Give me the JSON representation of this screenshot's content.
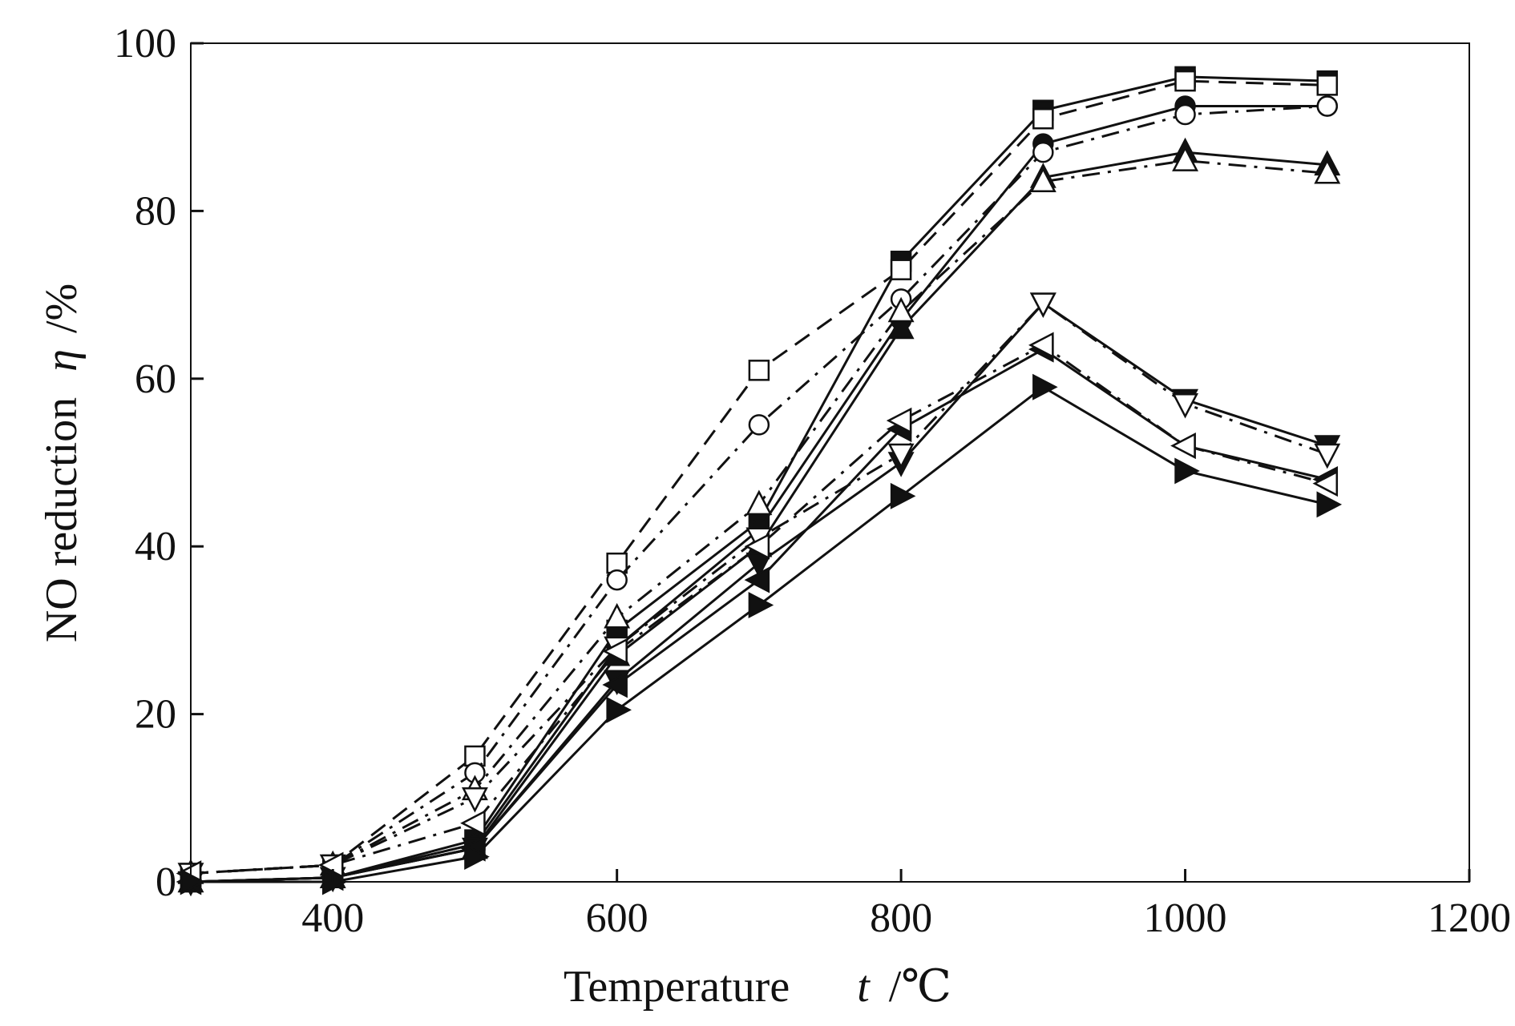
{
  "chart_data": {
    "type": "line",
    "title": "",
    "xlabel": "Temperature",
    "xlabel_symbol": "t",
    "xlabel_unit": "/℃",
    "ylabel": "NO reduction",
    "ylabel_symbol": "η",
    "ylabel_unit": "/%",
    "xlim": [
      300,
      1200
    ],
    "ylim": [
      0,
      100
    ],
    "xticks": [
      400,
      600,
      800,
      1000,
      1200
    ],
    "yticks": [
      0,
      20,
      40,
      60,
      80,
      100
    ],
    "grid": false,
    "x": [
      300,
      400,
      500,
      600,
      700,
      800,
      900,
      1000,
      1100
    ],
    "series": [
      {
        "name": "filled square",
        "marker": "square",
        "filled": true,
        "dash": "solid",
        "values": [
          0,
          0.5,
          5,
          30,
          43,
          74,
          92,
          96,
          95.5
        ]
      },
      {
        "name": "open square",
        "marker": "square",
        "filled": false,
        "dash": "dash",
        "values": [
          1,
          2,
          15,
          38,
          61,
          73,
          91,
          95.5,
          95
        ]
      },
      {
        "name": "filled circle",
        "marker": "circle",
        "filled": true,
        "dash": "solid",
        "values": [
          0,
          0.5,
          4.5,
          28,
          42,
          67,
          88,
          92.5,
          92.5
        ]
      },
      {
        "name": "open circle",
        "marker": "circle",
        "filled": false,
        "dash": "dashdot",
        "values": [
          1,
          2,
          13,
          36,
          54.5,
          69.5,
          87,
          91.5,
          92.5
        ]
      },
      {
        "name": "filled up-triangle",
        "marker": "up",
        "filled": true,
        "dash": "solid",
        "values": [
          0,
          0.5,
          4,
          27,
          40,
          66,
          84,
          87,
          85.5
        ]
      },
      {
        "name": "open up-triangle",
        "marker": "up",
        "filled": false,
        "dash": "dashdot",
        "values": [
          1,
          2,
          11,
          31.5,
          45,
          68,
          83.5,
          86,
          84.5
        ]
      },
      {
        "name": "filled down-triangle",
        "marker": "down",
        "filled": true,
        "dash": "solid",
        "values": [
          0,
          0.5,
          4,
          24,
          38,
          50,
          69,
          57.5,
          52
        ]
      },
      {
        "name": "open down-triangle",
        "marker": "down",
        "filled": false,
        "dash": "dashdot",
        "values": [
          1,
          2,
          10,
          28,
          41,
          51,
          69,
          57,
          51
        ]
      },
      {
        "name": "filled left-triangle",
        "marker": "left",
        "filled": true,
        "dash": "solid",
        "values": [
          0,
          0.5,
          4,
          23.5,
          36,
          54,
          63.5,
          52,
          48
        ]
      },
      {
        "name": "open left-triangle",
        "marker": "left",
        "filled": false,
        "dash": "dashdot",
        "values": [
          1,
          2,
          7,
          27.5,
          40,
          55,
          64,
          52,
          47.5
        ]
      },
      {
        "name": "filled right-triangle",
        "marker": "right",
        "filled": true,
        "dash": "solid",
        "values": [
          0,
          0,
          3,
          20.5,
          33,
          46,
          59,
          49,
          45
        ]
      }
    ]
  }
}
